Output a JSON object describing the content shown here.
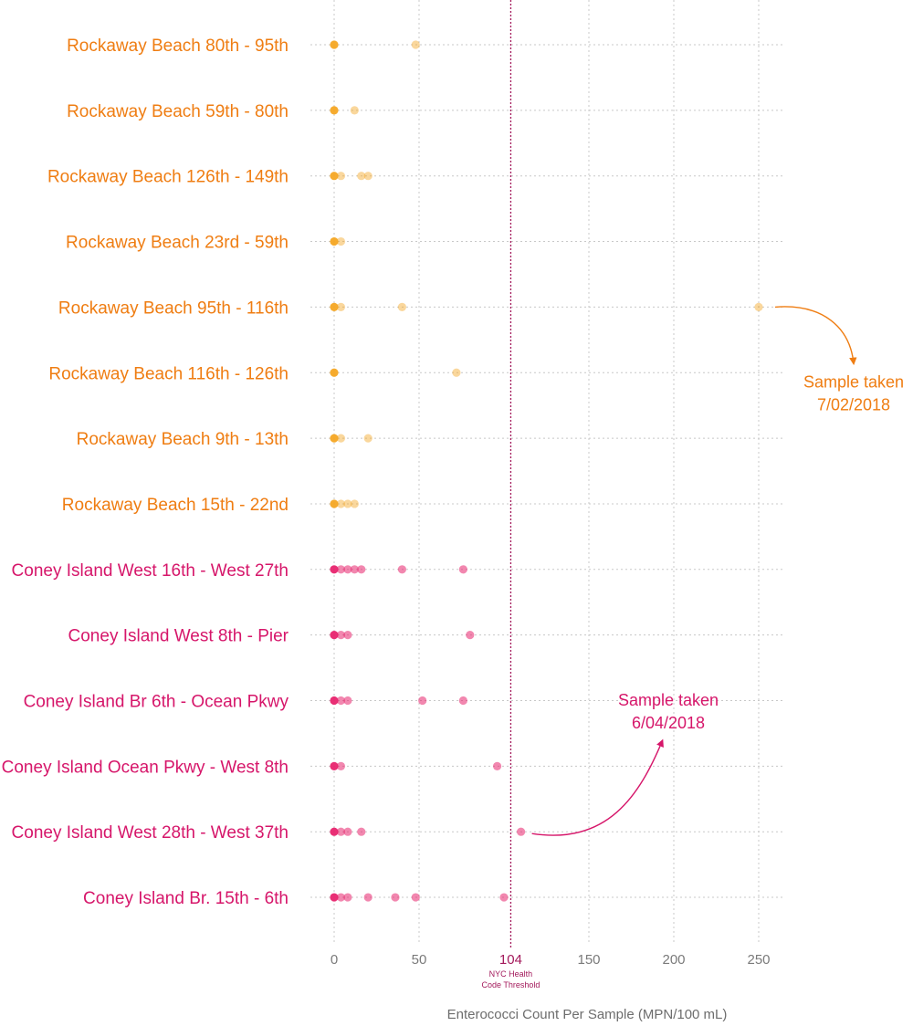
{
  "chart_data": {
    "type": "scatter",
    "xlabel": "Enterococci Count Per Sample (MPN/100 mL)",
    "xlim": [
      0,
      265
    ],
    "x_ticks": [
      0,
      50,
      150,
      200,
      250
    ],
    "grid": true,
    "threshold": {
      "value": 104,
      "label": "104",
      "note_line1": "NYC Health",
      "note_line2": "Code Threshold",
      "color": "#a3195b"
    },
    "colors": {
      "rockaway": "#f5a623",
      "rockaway_label": "#ef7d12",
      "coney": "#e8246e",
      "coney_label": "#d6166a",
      "grid": "#c8c8c8"
    },
    "series": [
      {
        "name": "Rockaway Beach 80th - 95th",
        "group": "rockaway",
        "values": [
          0,
          48
        ]
      },
      {
        "name": "Rockaway Beach 59th - 80th",
        "group": "rockaway",
        "values": [
          0,
          12
        ]
      },
      {
        "name": "Rockaway Beach 126th - 149th",
        "group": "rockaway",
        "values": [
          0,
          4,
          16,
          20
        ]
      },
      {
        "name": "Rockaway Beach 23rd - 59th",
        "group": "rockaway",
        "values": [
          0,
          4
        ]
      },
      {
        "name": "Rockaway Beach 95th - 116th",
        "group": "rockaway",
        "values": [
          0,
          4,
          40,
          250
        ]
      },
      {
        "name": "Rockaway Beach 116th - 126th",
        "group": "rockaway",
        "values": [
          0,
          72
        ]
      },
      {
        "name": "Rockaway Beach 9th - 13th",
        "group": "rockaway",
        "values": [
          0,
          4,
          20
        ]
      },
      {
        "name": "Rockaway Beach 15th - 22nd",
        "group": "rockaway",
        "values": [
          0,
          4,
          8,
          12
        ]
      },
      {
        "name": "Coney Island West 16th - West 27th",
        "group": "coney",
        "values": [
          0,
          4,
          8,
          12,
          16,
          40,
          76
        ]
      },
      {
        "name": "Coney Island West 8th - Pier",
        "group": "coney",
        "values": [
          0,
          4,
          8,
          80
        ]
      },
      {
        "name": "Coney Island Br 6th - Ocean Pkwy",
        "group": "coney",
        "values": [
          0,
          4,
          8,
          52,
          76
        ]
      },
      {
        "name": "Coney Island Ocean Pkwy - West 8th",
        "group": "coney",
        "values": [
          0,
          4,
          96
        ]
      },
      {
        "name": "Coney Island West 28th - West 37th",
        "group": "coney",
        "values": [
          0,
          4,
          8,
          16,
          110
        ]
      },
      {
        "name": "Coney Island Br. 15th - 6th",
        "group": "coney",
        "values": [
          0,
          4,
          8,
          20,
          36,
          48,
          100
        ]
      }
    ],
    "annotations": [
      {
        "line1": "Sample taken",
        "line2": "7/02/2018",
        "series_index": 4,
        "x": 250,
        "group": "rockaway"
      },
      {
        "line1": "Sample taken",
        "line2": "6/04/2018",
        "series_index": 12,
        "x": 110,
        "group": "coney"
      }
    ]
  }
}
